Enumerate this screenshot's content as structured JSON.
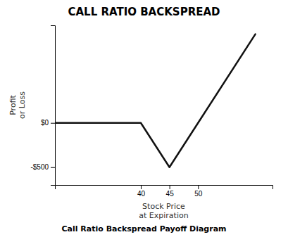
{
  "chart_data": {
    "type": "line",
    "title": "CALL RATIO BACKSPREAD",
    "subtitle": "Call Ratio Backspread Payoff Diagram",
    "x_label": "Stock Price\nat Expiration",
    "y_label": "Profit\nor Loss",
    "x": [
      25,
      40,
      45,
      50,
      60
    ],
    "values": [
      0,
      0,
      -500,
      0,
      1000
    ],
    "color": "#111111",
    "xlim": [
      25,
      63
    ],
    "ylim": [
      -700,
      1100
    ],
    "xticks": [
      40,
      45,
      50
    ],
    "yticks": [
      {
        "value": 0,
        "label": "$0"
      },
      {
        "value": -500,
        "label": "-$500"
      }
    ],
    "grid": false
  }
}
